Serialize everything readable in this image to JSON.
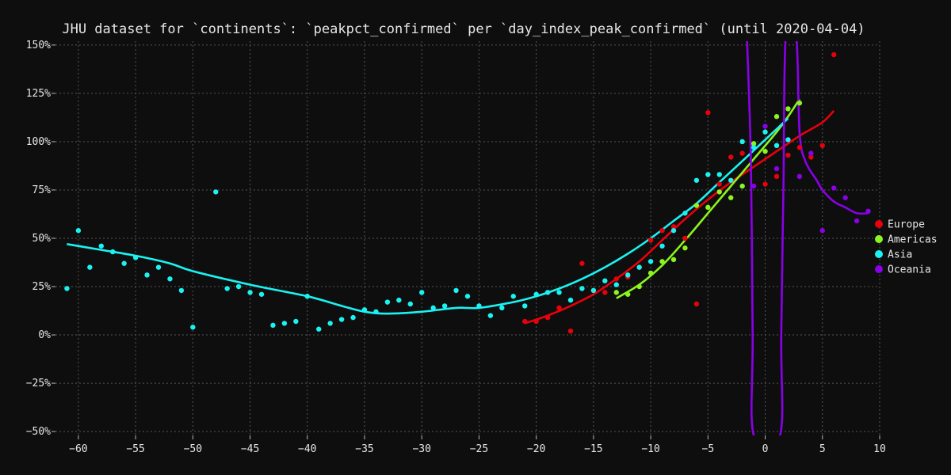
{
  "chart_data": {
    "type": "scatter",
    "title": "JHU dataset for `continents`: `peakpct_confirmed` per `day_index_peak_confirmed` (until 2020-04-04)",
    "xlabel": "",
    "ylabel": "",
    "xlim": [
      -62,
      10
    ],
    "ylim": [
      -0.52,
      1.52
    ],
    "x_ticks": [
      -60,
      -55,
      -50,
      -45,
      -40,
      -35,
      -30,
      -25,
      -20,
      -15,
      -10,
      -5,
      0,
      5,
      10
    ],
    "x_tick_labels": [
      "−60",
      "−55",
      "−50",
      "−45",
      "−40",
      "−35",
      "−30",
      "−25",
      "−20",
      "−15",
      "−10",
      "−5",
      "0",
      "5",
      "10"
    ],
    "y_ticks": [
      -0.5,
      -0.25,
      0,
      0.25,
      0.5,
      0.75,
      1.0,
      1.25,
      1.5
    ],
    "y_tick_labels": [
      "−50%",
      "−25%",
      "0%",
      "25%",
      "50%",
      "75%",
      "100%",
      "125%",
      "150%"
    ],
    "grid": true,
    "legend_position": "right",
    "series": [
      {
        "name": "Europe",
        "color": "#e8000b",
        "points": [
          [
            -21,
            0.07
          ],
          [
            -20,
            0.07
          ],
          [
            -19,
            0.09
          ],
          [
            -18,
            0.14
          ],
          [
            -17,
            0.02
          ],
          [
            -16,
            0.37
          ],
          [
            -15,
            0.23
          ],
          [
            -14,
            0.22
          ],
          [
            -13,
            0.29
          ],
          [
            -12,
            0.3
          ],
          [
            -11,
            0.35
          ],
          [
            -10,
            0.49
          ],
          [
            -9,
            0.54
          ],
          [
            -8,
            0.56
          ],
          [
            -7,
            0.5
          ],
          [
            -6,
            0.16
          ],
          [
            -5,
            1.15
          ],
          [
            -4,
            0.78
          ],
          [
            -3,
            0.92
          ],
          [
            -2,
            0.94
          ],
          [
            0,
            0.78
          ],
          [
            1,
            0.82
          ],
          [
            2,
            0.93
          ],
          [
            3,
            0.97
          ],
          [
            4,
            0.92
          ],
          [
            5,
            0.98
          ],
          [
            6,
            1.45
          ]
        ],
        "fit": [
          [
            -21,
            0.06
          ],
          [
            -19,
            0.1
          ],
          [
            -17,
            0.15
          ],
          [
            -15,
            0.21
          ],
          [
            -13,
            0.29
          ],
          [
            -11,
            0.38
          ],
          [
            -9,
            0.49
          ],
          [
            -7,
            0.6
          ],
          [
            -5,
            0.7
          ],
          [
            -3,
            0.79
          ],
          [
            -1,
            0.87
          ],
          [
            1,
            0.95
          ],
          [
            3,
            1.03
          ],
          [
            5,
            1.1
          ],
          [
            6,
            1.16
          ]
        ]
      },
      {
        "name": "Americas",
        "color": "#8cf41e",
        "points": [
          [
            -13,
            0.22
          ],
          [
            -12,
            0.21
          ],
          [
            -11,
            0.25
          ],
          [
            -10,
            0.32
          ],
          [
            -9,
            0.38
          ],
          [
            -8,
            0.39
          ],
          [
            -7,
            0.45
          ],
          [
            -6,
            0.67
          ],
          [
            -5,
            0.66
          ],
          [
            -4,
            0.74
          ],
          [
            -3,
            0.71
          ],
          [
            -2,
            0.77
          ],
          [
            -1,
            0.99
          ],
          [
            0,
            0.95
          ],
          [
            1,
            1.13
          ],
          [
            2,
            1.17
          ],
          [
            3,
            1.2
          ]
        ],
        "fit": [
          [
            -13,
            0.19
          ],
          [
            -11,
            0.26
          ],
          [
            -9,
            0.36
          ],
          [
            -7,
            0.49
          ],
          [
            -5,
            0.63
          ],
          [
            -3,
            0.77
          ],
          [
            -1,
            0.91
          ],
          [
            1,
            1.05
          ],
          [
            2,
            1.13
          ],
          [
            3,
            1.22
          ]
        ]
      },
      {
        "name": "Asia",
        "color": "#1bf2f2",
        "points": [
          [
            -61,
            0.24
          ],
          [
            -60,
            0.54
          ],
          [
            -59,
            0.35
          ],
          [
            -58,
            0.46
          ],
          [
            -57,
            0.43
          ],
          [
            -56,
            0.37
          ],
          [
            -55,
            0.4
          ],
          [
            -54,
            0.31
          ],
          [
            -53,
            0.35
          ],
          [
            -52,
            0.29
          ],
          [
            -51,
            0.23
          ],
          [
            -50,
            0.04
          ],
          [
            -48,
            0.74
          ],
          [
            -47,
            0.24
          ],
          [
            -46,
            0.25
          ],
          [
            -45,
            0.22
          ],
          [
            -44,
            0.21
          ],
          [
            -43,
            0.05
          ],
          [
            -42,
            0.06
          ],
          [
            -41,
            0.07
          ],
          [
            -40,
            0.2
          ],
          [
            -39,
            0.03
          ],
          [
            -38,
            0.06
          ],
          [
            -37,
            0.08
          ],
          [
            -36,
            0.09
          ],
          [
            -35,
            0.13
          ],
          [
            -34,
            0.12
          ],
          [
            -33,
            0.17
          ],
          [
            -32,
            0.18
          ],
          [
            -31,
            0.16
          ],
          [
            -30,
            0.22
          ],
          [
            -29,
            0.14
          ],
          [
            -28,
            0.15
          ],
          [
            -27,
            0.23
          ],
          [
            -26,
            0.2
          ],
          [
            -25,
            0.15
          ],
          [
            -24,
            0.1
          ],
          [
            -23,
            0.14
          ],
          [
            -22,
            0.2
          ],
          [
            -21,
            0.15
          ],
          [
            -20,
            0.21
          ],
          [
            -19,
            0.22
          ],
          [
            -18,
            0.22
          ],
          [
            -17,
            0.18
          ],
          [
            -16,
            0.24
          ],
          [
            -15,
            0.23
          ],
          [
            -14,
            0.28
          ],
          [
            -13,
            0.26
          ],
          [
            -12,
            0.31
          ],
          [
            -11,
            0.35
          ],
          [
            -10,
            0.38
          ],
          [
            -9,
            0.46
          ],
          [
            -8,
            0.54
          ],
          [
            -7,
            0.63
          ],
          [
            -6,
            0.8
          ],
          [
            -5,
            0.83
          ],
          [
            -4,
            0.83
          ],
          [
            -3,
            0.8
          ],
          [
            -2,
            1.0
          ],
          [
            -1,
            0.97
          ],
          [
            0,
            1.05
          ],
          [
            1,
            0.98
          ],
          [
            2,
            1.01
          ]
        ],
        "fit": [
          [
            -61,
            0.47
          ],
          [
            -58,
            0.44
          ],
          [
            -55,
            0.41
          ],
          [
            -52,
            0.37
          ],
          [
            -50,
            0.33
          ],
          [
            -45,
            0.26
          ],
          [
            -40,
            0.2
          ],
          [
            -37,
            0.15
          ],
          [
            -35,
            0.12
          ],
          [
            -33,
            0.11
          ],
          [
            -30,
            0.12
          ],
          [
            -27,
            0.14
          ],
          [
            -25,
            0.14
          ],
          [
            -22,
            0.17
          ],
          [
            -20,
            0.2
          ],
          [
            -18,
            0.24
          ],
          [
            -16,
            0.29
          ],
          [
            -14,
            0.35
          ],
          [
            -12,
            0.42
          ],
          [
            -10,
            0.5
          ],
          [
            -8,
            0.59
          ],
          [
            -6,
            0.68
          ],
          [
            -4,
            0.79
          ],
          [
            -2,
            0.9
          ],
          [
            0,
            1.01
          ],
          [
            2,
            1.12
          ]
        ]
      },
      {
        "name": "Oceania",
        "color": "#8a00e8",
        "points": [
          [
            -1,
            0.77
          ],
          [
            0,
            1.08
          ],
          [
            1,
            0.86
          ],
          [
            3,
            0.82
          ],
          [
            4,
            0.94
          ],
          [
            5,
            0.54
          ],
          [
            6,
            0.76
          ],
          [
            7,
            0.71
          ],
          [
            8,
            0.59
          ],
          [
            9,
            0.64
          ]
        ],
        "fit": [
          [
            -1.6,
            1.55
          ],
          [
            -1.25,
            0.9
          ],
          [
            -1.1,
            0
          ],
          [
            -1.0,
            -0.52
          ],
          [
            1.3,
            -0.52
          ],
          [
            1.4,
            0
          ],
          [
            1.6,
            0.8
          ],
          [
            1.8,
            1.55
          ],
          [
            2.7,
            1.55
          ],
          [
            3.0,
            1.05
          ],
          [
            3.5,
            0.9
          ],
          [
            4.5,
            0.8
          ],
          [
            5,
            0.75
          ],
          [
            6,
            0.69
          ],
          [
            7,
            0.66
          ],
          [
            8,
            0.63
          ],
          [
            9,
            0.63
          ]
        ]
      }
    ]
  }
}
